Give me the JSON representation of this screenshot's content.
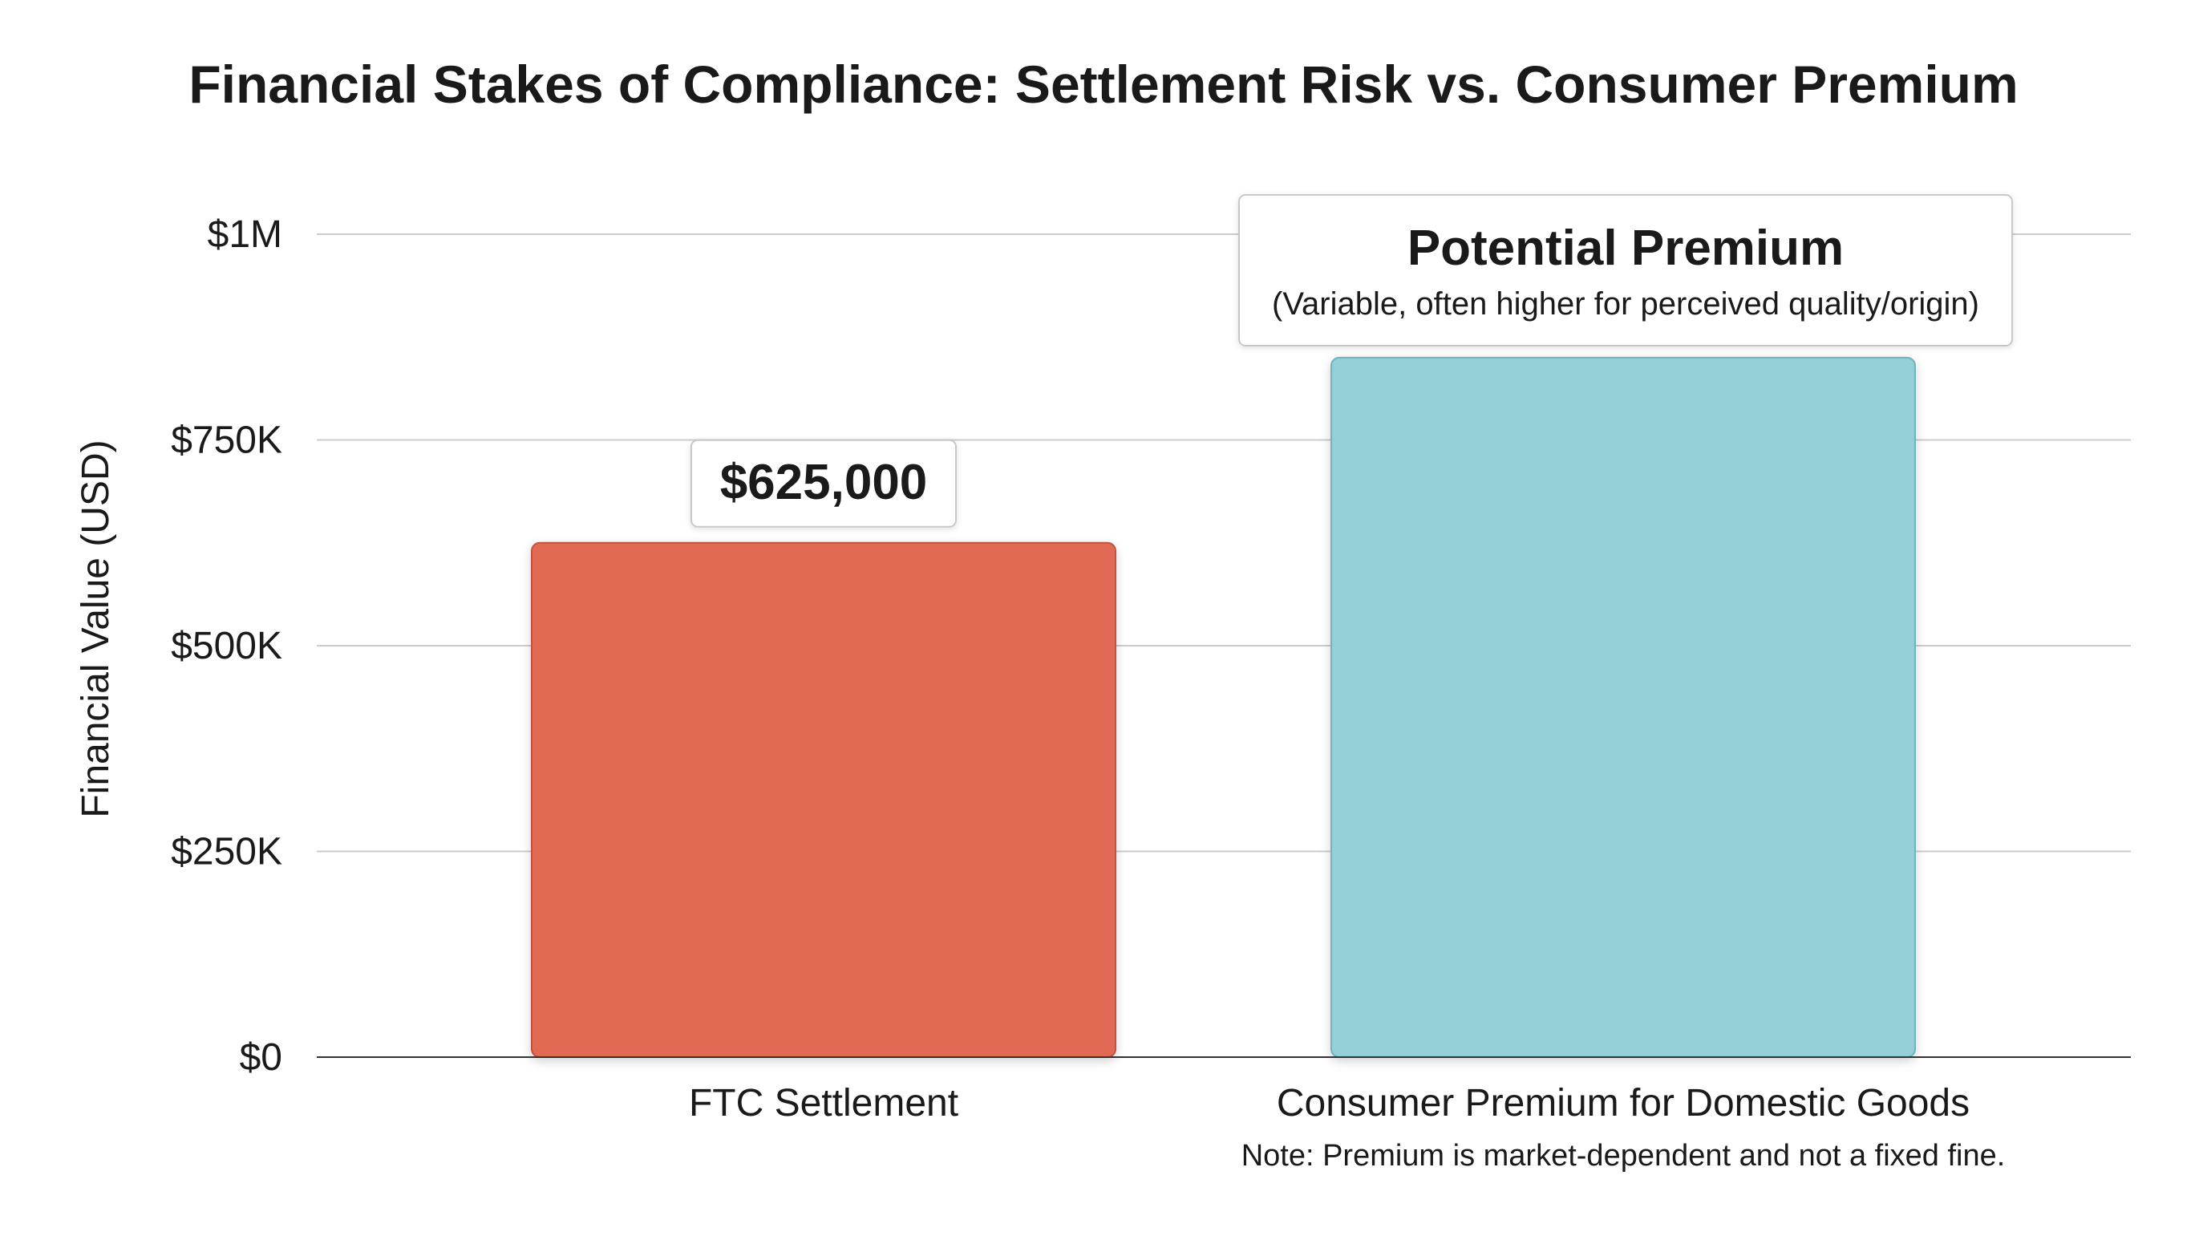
{
  "chart_data": {
    "type": "bar",
    "title": "Financial Stakes of Compliance: Settlement Risk vs. Consumer Premium",
    "ylabel": "Financial Value (USD)",
    "xlabel": "",
    "ylim": [
      0,
      1000000
    ],
    "y_ticks": [
      {
        "value": 0,
        "label": "$0"
      },
      {
        "value": 250000,
        "label": "$250K"
      },
      {
        "value": 500000,
        "label": "$500K"
      },
      {
        "value": 750000,
        "label": "$750K"
      },
      {
        "value": 1000000,
        "label": "$1M"
      }
    ],
    "grid": true,
    "categories": [
      "FTC Settlement",
      "Consumer Premium for Domestic Goods"
    ],
    "values": [
      625000,
      850000
    ],
    "colors": [
      "#e06a52",
      "#94ced6"
    ],
    "bar_labels": [
      {
        "title": "$625,000",
        "subtitle": ""
      },
      {
        "title": "Potential Premium",
        "subtitle": "(Variable, often higher for perceived quality/origin)"
      }
    ],
    "footnote": "Note: Premium is market-dependent and not a fixed fine."
  }
}
